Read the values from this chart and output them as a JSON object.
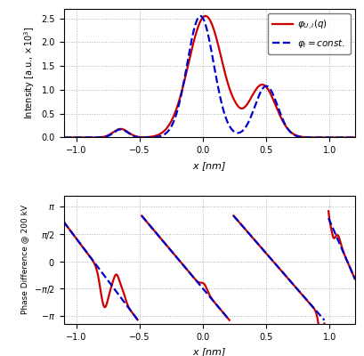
{
  "fig_width": 4.09,
  "fig_height": 4.0,
  "dpi": 100,
  "xlim": [
    -1.1,
    1.2
  ],
  "upper_ylim": [
    0,
    2.7
  ],
  "upper_yticks": [
    0.0,
    0.5,
    1.0,
    1.5,
    2.0,
    2.5
  ],
  "upper_ylabel": "Intensity [a.u., $\\times 10^{3}$]",
  "upper_xlabel": "$x$ [nm]",
  "lower_ylim": [
    -3.6,
    3.8
  ],
  "lower_yticks_vals": [
    -3.14159265,
    -1.5707963,
    0,
    1.5707963,
    3.14159265
  ],
  "lower_ytick_labels": [
    "$-\\pi$",
    "$-\\pi/2$",
    "$0$",
    "$\\pi/2$",
    "$\\pi$"
  ],
  "lower_ylabel": "Phase Difference @ 200 kV",
  "lower_xlabel": "$x$ [nm]",
  "color_solid": "#cc0000",
  "color_dashed": "#0000cc",
  "legend_label_solid": "$\\varphi_{U,i}(q)$",
  "legend_label_dashed": "$\\varphi_i = const.$",
  "grid_color": "#b0b0b0",
  "grid_linestyle": ":"
}
